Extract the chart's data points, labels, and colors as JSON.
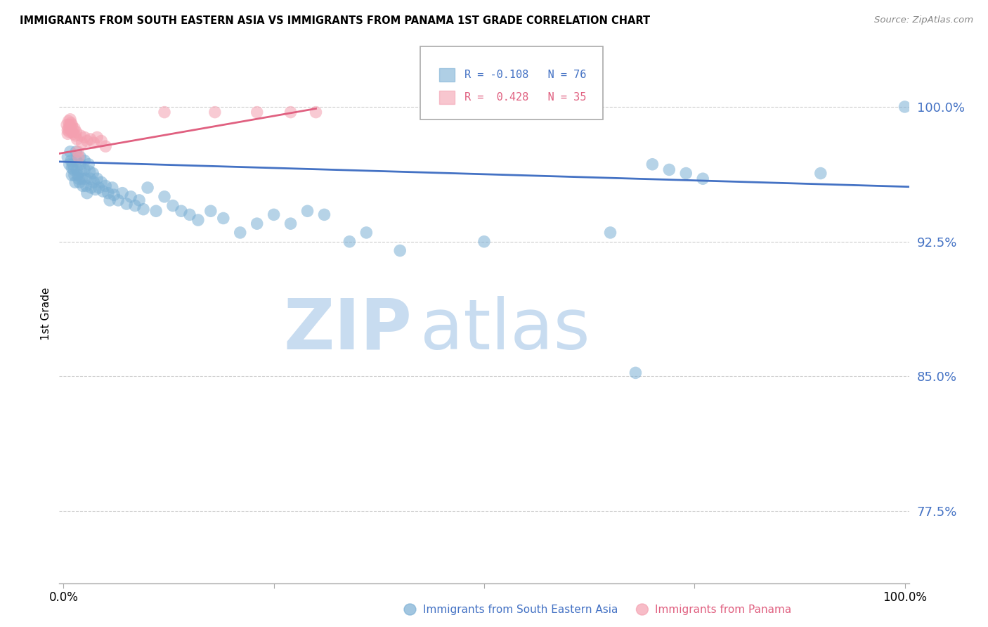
{
  "title": "IMMIGRANTS FROM SOUTH EASTERN ASIA VS IMMIGRANTS FROM PANAMA 1ST GRADE CORRELATION CHART",
  "source": "Source: ZipAtlas.com",
  "ylabel": "1st Grade",
  "label_sea": "Immigrants from South Eastern Asia",
  "label_panama": "Immigrants from Panama",
  "ytick_labels": [
    "100.0%",
    "92.5%",
    "85.0%",
    "77.5%"
  ],
  "ytick_values": [
    1.0,
    0.925,
    0.85,
    0.775
  ],
  "ymin": 0.735,
  "ymax": 1.035,
  "xmin": -0.005,
  "xmax": 1.005,
  "legend_r1": "R = -0.108",
  "legend_n1": "N = 76",
  "legend_r2": "R =  0.428",
  "legend_n2": "N = 35",
  "blue_color": "#7BAFD4",
  "pink_color": "#F4A0B0",
  "line_blue": "#4472C4",
  "line_pink": "#E06080",
  "ytick_color": "#4472C4",
  "watermark_zip_color": "#C8DCF0",
  "watermark_atlas_color": "#C8DCF0",
  "blue_line_x0": -0.005,
  "blue_line_x1": 1.005,
  "blue_line_y0": 0.9695,
  "blue_line_y1": 0.9555,
  "pink_line_x0": -0.005,
  "pink_line_x1": 0.3,
  "pink_line_y0": 0.974,
  "pink_line_y1": 0.999,
  "blue_points_x": [
    0.005,
    0.007,
    0.008,
    0.009,
    0.01,
    0.01,
    0.011,
    0.012,
    0.013,
    0.014,
    0.015,
    0.015,
    0.016,
    0.017,
    0.018,
    0.019,
    0.02,
    0.02,
    0.021,
    0.022,
    0.023,
    0.025,
    0.025,
    0.026,
    0.027,
    0.028,
    0.03,
    0.031,
    0.032,
    0.033,
    0.035,
    0.036,
    0.038,
    0.04,
    0.042,
    0.045,
    0.047,
    0.05,
    0.053,
    0.055,
    0.058,
    0.06,
    0.065,
    0.07,
    0.075,
    0.08,
    0.085,
    0.09,
    0.095,
    0.1,
    0.11,
    0.12,
    0.13,
    0.14,
    0.15,
    0.16,
    0.175,
    0.19,
    0.21,
    0.23,
    0.25,
    0.27,
    0.29,
    0.31,
    0.34,
    0.36,
    0.4,
    0.5,
    0.65,
    0.68,
    0.7,
    0.72,
    0.74,
    0.76,
    0.9,
    1.0
  ],
  "blue_points_y": [
    0.972,
    0.968,
    0.975,
    0.97,
    0.966,
    0.962,
    0.968,
    0.965,
    0.962,
    0.958,
    0.975,
    0.97,
    0.965,
    0.962,
    0.96,
    0.958,
    0.972,
    0.968,
    0.964,
    0.96,
    0.956,
    0.97,
    0.965,
    0.96,
    0.956,
    0.952,
    0.968,
    0.964,
    0.96,
    0.955,
    0.963,
    0.958,
    0.954,
    0.96,
    0.955,
    0.958,
    0.953,
    0.956,
    0.952,
    0.948,
    0.955,
    0.951,
    0.948,
    0.952,
    0.946,
    0.95,
    0.945,
    0.948,
    0.943,
    0.955,
    0.942,
    0.95,
    0.945,
    0.942,
    0.94,
    0.937,
    0.942,
    0.938,
    0.93,
    0.935,
    0.94,
    0.935,
    0.942,
    0.94,
    0.925,
    0.93,
    0.92,
    0.925,
    0.93,
    0.852,
    0.968,
    0.965,
    0.963,
    0.96,
    0.963,
    1.0
  ],
  "pink_points_x": [
    0.004,
    0.005,
    0.005,
    0.006,
    0.006,
    0.007,
    0.007,
    0.008,
    0.008,
    0.009,
    0.009,
    0.01,
    0.01,
    0.011,
    0.012,
    0.013,
    0.014,
    0.015,
    0.016,
    0.017,
    0.018,
    0.02,
    0.022,
    0.025,
    0.028,
    0.032,
    0.036,
    0.04,
    0.045,
    0.05,
    0.12,
    0.18,
    0.23,
    0.27,
    0.3
  ],
  "pink_points_y": [
    0.99,
    0.987,
    0.985,
    0.992,
    0.988,
    0.99,
    0.986,
    0.993,
    0.989,
    0.991,
    0.987,
    0.99,
    0.986,
    0.988,
    0.985,
    0.988,
    0.984,
    0.986,
    0.982,
    0.975,
    0.972,
    0.984,
    0.98,
    0.983,
    0.981,
    0.982,
    0.98,
    0.983,
    0.981,
    0.978,
    0.997,
    0.997,
    0.997,
    0.997,
    0.997
  ]
}
